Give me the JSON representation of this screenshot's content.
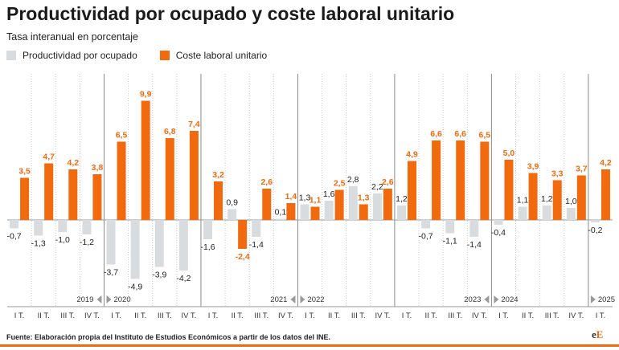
{
  "title": "Productividad por ocupado y coste laboral unitario",
  "subtitle": "Tasa interanual en porcentaje",
  "footer": "Fuente: Elaboración propia del Instituto de Estudios Económicos a partir de los datos del INE.",
  "brand": {
    "e1": "e",
    "e2": "E"
  },
  "colors": {
    "productividad": "#d9dcde",
    "coste": "#f26a0e",
    "label_orange": "#f26a0e",
    "label_dark": "#222222"
  },
  "chart_data": {
    "type": "bar",
    "title": "Productividad por ocupado y coste laboral unitario",
    "subtitle": "Tasa interanual en porcentaje",
    "categories": [
      "I T.",
      "II T.",
      "III T.",
      "IV T.",
      "I T.",
      "II T.",
      "III T.",
      "IV T.",
      "I T.",
      "II T.",
      "III T.",
      "IV T.",
      "I T.",
      "II T.",
      "III T.",
      "IV T.",
      "I T.",
      "II T.",
      "III T.",
      "IV T.",
      "I T.",
      "II T.",
      "III T.",
      "IV T.",
      "I T."
    ],
    "years": [
      {
        "label": "2019",
        "index": 3,
        "side": "left"
      },
      {
        "label": "2020",
        "index": 4,
        "side": "right"
      },
      {
        "label": "2021",
        "index": 11,
        "side": "left"
      },
      {
        "label": "2022",
        "index": 12,
        "side": "right"
      },
      {
        "label": "2023",
        "index": 19,
        "side": "left"
      },
      {
        "label": "2024",
        "index": 20,
        "side": "right"
      },
      {
        "label": "2025",
        "index": 24,
        "side": "right"
      }
    ],
    "series": [
      {
        "name": "Productividad por ocupado",
        "values": [
          -0.7,
          -1.3,
          -1.0,
          -1.2,
          -3.7,
          -4.9,
          -3.9,
          -4.2,
          -1.6,
          0.9,
          -1.4,
          0.1,
          1.3,
          1.6,
          2.8,
          2.2,
          1.2,
          -0.7,
          -1.1,
          -1.4,
          -0.4,
          1.1,
          1.2,
          1.0,
          -0.2
        ],
        "labels": [
          "-0,7",
          "-1,3",
          "-1,0",
          "-1,2",
          "-3,7",
          "-4,9",
          "-3,9",
          "-4,2",
          "-1,6",
          "0,9",
          "-1,4",
          "0,1",
          "1,3",
          "1,6",
          "2,8",
          "2,2",
          "1,2",
          "-0,7",
          "-1,1",
          "-1,4",
          "-0,4",
          "1,1",
          "1,2",
          "1,0",
          "-0,2"
        ]
      },
      {
        "name": "Coste laboral unitario",
        "values": [
          3.5,
          4.7,
          4.2,
          3.8,
          6.5,
          9.9,
          6.8,
          7.4,
          3.2,
          -2.4,
          2.6,
          1.4,
          1.1,
          2.5,
          1.3,
          2.6,
          4.9,
          6.6,
          6.6,
          6.5,
          5.0,
          3.9,
          3.3,
          3.7,
          4.2
        ],
        "labels": [
          "3,5",
          "4,7",
          "4,2",
          "3,8",
          "6,5",
          "9,9",
          "6,8",
          "7,4",
          "3,2",
          "-2,4",
          "2,6",
          "1,4",
          "1,1",
          "2,5",
          "1,3",
          "2,6",
          "4,9",
          "6,6",
          "6,6",
          "6,5",
          "5,0",
          "3,9",
          "3,3",
          "3,7",
          "4,2"
        ]
      }
    ],
    "legend_position": "top-left",
    "grid": false
  }
}
